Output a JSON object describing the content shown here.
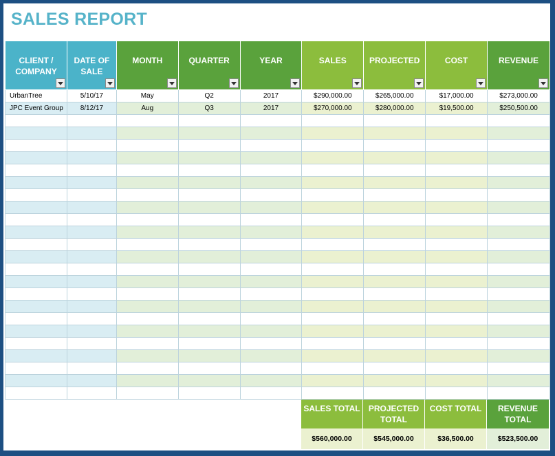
{
  "title": "SALES REPORT",
  "columns": [
    {
      "label": "CLIENT / COMPANY",
      "group": "blue"
    },
    {
      "label": "DATE OF SALE",
      "group": "blue"
    },
    {
      "label": "MONTH",
      "group": "green"
    },
    {
      "label": "QUARTER",
      "group": "green"
    },
    {
      "label": "YEAR",
      "group": "green"
    },
    {
      "label": "SALES",
      "group": "lime"
    },
    {
      "label": "PROJECTED",
      "group": "lime"
    },
    {
      "label": "COST",
      "group": "lime"
    },
    {
      "label": "REVENUE",
      "group": "green"
    }
  ],
  "rows": [
    [
      "UrbanTree",
      "5/10/17",
      "May",
      "Q2",
      "2017",
      "$290,000.00",
      "$265,000.00",
      "$17,000.00",
      "$273,000.00"
    ],
    [
      "JPC Event Group",
      "8/12/17",
      "Aug",
      "Q3",
      "2017",
      "$270,000.00",
      "$280,000.00",
      "$19,500.00",
      "$250,500.00"
    ]
  ],
  "empty_rows": 23,
  "totals": [
    {
      "label": "SALES TOTAL",
      "value": "$560,000.00"
    },
    {
      "label": "PROJECTED TOTAL",
      "value": "$545,000.00"
    },
    {
      "label": "COST TOTAL",
      "value": "$36,500.00"
    },
    {
      "label": "REVENUE TOTAL",
      "value": "$523,500.00"
    }
  ],
  "colors": {
    "frame": "#1d4f82",
    "title": "#56b3c9",
    "header_blue": "#4bb3c9",
    "header_green": "#5aa23c",
    "header_lime": "#8cbd3d",
    "band_blue": "#d9edf3",
    "band_green": "#e2efd9",
    "band_lime": "#ebf1d0"
  }
}
